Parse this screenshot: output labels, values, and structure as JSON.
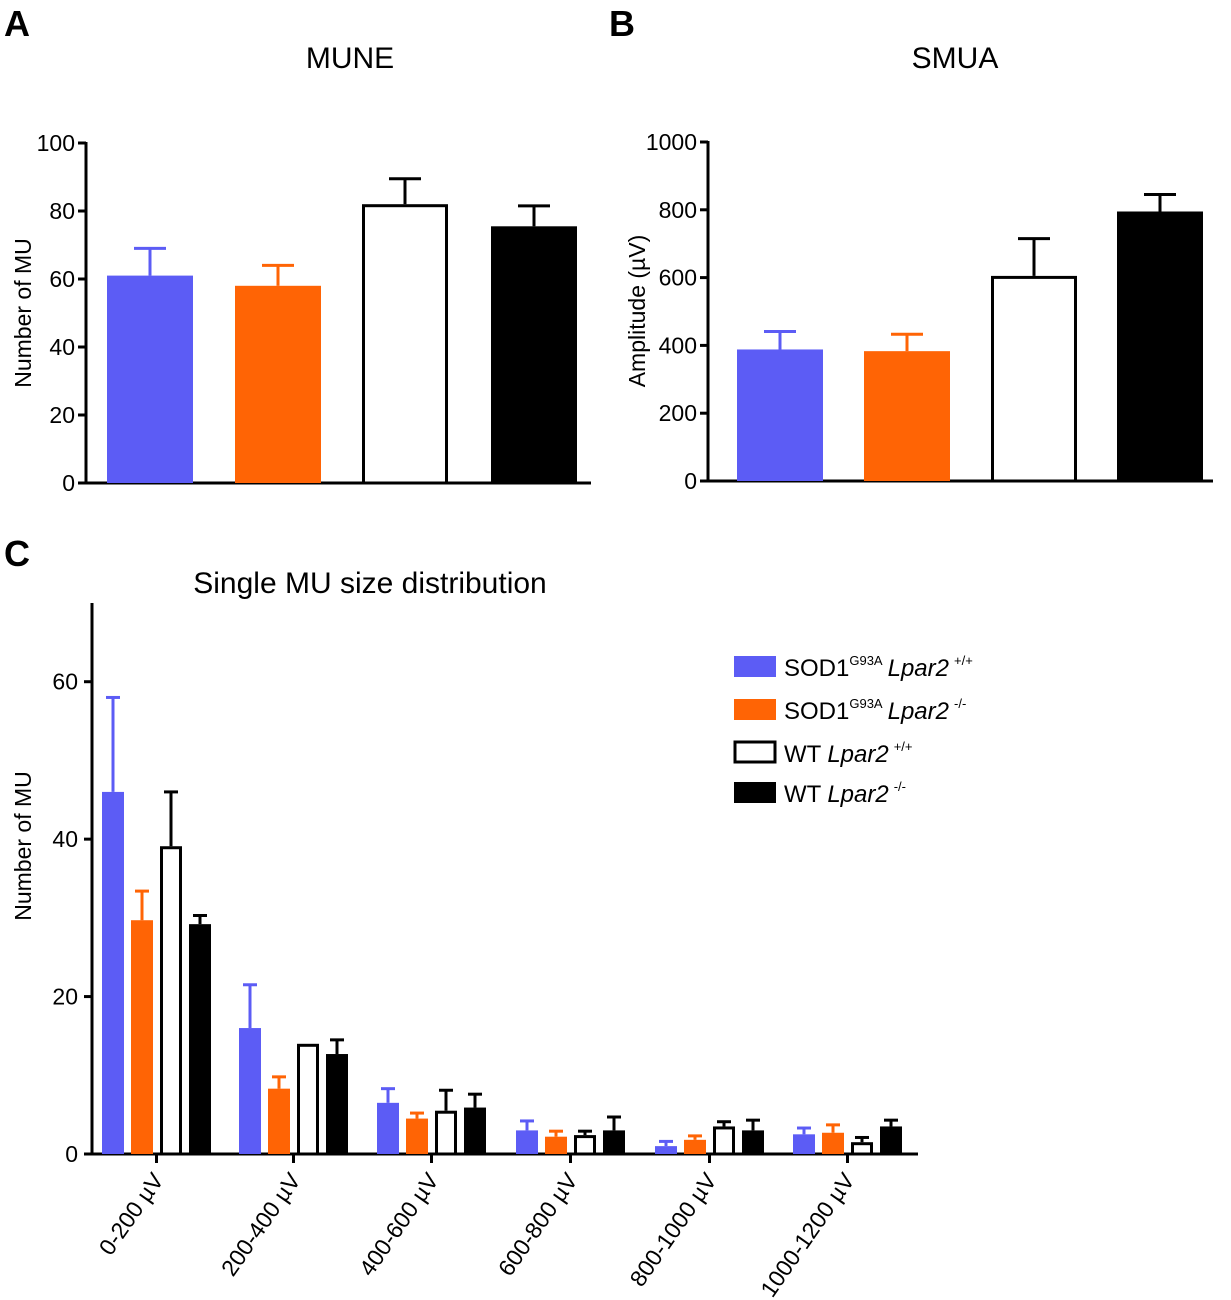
{
  "series_colors": {
    "sod1_lpar2_wt": "#5c5cf5",
    "sod1_lpar2_ko": "#ff6405",
    "wt_lpar2_wt": "#ffffff",
    "wt_lpar2_ko": "#000000"
  },
  "legend": [
    {
      "pre": "SOD1",
      "sup1": "G93A",
      "gene": "Lpar2",
      "sup2": "+/+"
    },
    {
      "pre": "SOD1",
      "sup1": "G93A",
      "gene": "Lpar2",
      "sup2": "-/-"
    },
    {
      "pre": "WT",
      "sup1": "",
      "gene": "Lpar2",
      "sup2": "+/+"
    },
    {
      "pre": "WT",
      "sup1": "",
      "gene": "Lpar2",
      "sup2": "-/-"
    }
  ],
  "chart_data": [
    {
      "panel": "A",
      "type": "bar",
      "title": "MUNE",
      "xlabel": "",
      "ylabel": "Number of MU",
      "ylim": [
        0,
        100
      ],
      "yticks": [
        "0",
        "20",
        "40",
        "60",
        "80",
        "100"
      ],
      "bars": [
        {
          "series": "sod1_lpar2_wt",
          "value": 61,
          "error": 8
        },
        {
          "series": "sod1_lpar2_ko",
          "value": 58,
          "error": 6
        },
        {
          "series": "wt_lpar2_wt",
          "value": 82,
          "error": 7.5
        },
        {
          "series": "wt_lpar2_ko",
          "value": 75.5,
          "error": 6
        }
      ]
    },
    {
      "panel": "B",
      "type": "bar",
      "title": "SMUA",
      "xlabel": "",
      "ylabel": "Amplitude (µV)",
      "ylim": [
        0,
        1000
      ],
      "yticks": [
        "0",
        "200",
        "400",
        "600",
        "800",
        "1000"
      ],
      "bars": [
        {
          "series": "sod1_lpar2_wt",
          "value": 388,
          "error": 53
        },
        {
          "series": "sod1_lpar2_ko",
          "value": 383,
          "error": 50
        },
        {
          "series": "wt_lpar2_wt",
          "value": 605,
          "error": 110
        },
        {
          "series": "wt_lpar2_ko",
          "value": 795,
          "error": 50
        }
      ]
    },
    {
      "panel": "C",
      "type": "bar",
      "title": "Single MU size distribution",
      "xlabel": "",
      "ylabel": "Number of MU",
      "ylim": [
        0,
        70
      ],
      "yticks": [
        "0",
        "20",
        "40",
        "60"
      ],
      "categories": [
        "0-200 µV",
        "200-400 µV",
        "400-600 µV",
        "600-800 µV",
        "800-1000 µV",
        "1000-1200 µV"
      ],
      "series": [
        {
          "name": "sod1_lpar2_wt",
          "values": [
            46,
            16,
            6.5,
            3,
            1,
            2.5
          ],
          "errors": [
            12,
            5.5,
            1.8,
            1.2,
            0.6,
            0.8
          ]
        },
        {
          "name": "sod1_lpar2_ko",
          "values": [
            29.7,
            8.3,
            4.5,
            2.2,
            1.8,
            2.7
          ],
          "errors": [
            3.7,
            1.5,
            0.7,
            0.7,
            0.5,
            1.0
          ]
        },
        {
          "name": "wt_lpar2_wt",
          "values": [
            39.1,
            14,
            5.5,
            2.4,
            3.5,
            1.5
          ],
          "errors": [
            6.9,
            0,
            2.6,
            0.5,
            0.6,
            0.6
          ]
        },
        {
          "name": "wt_lpar2_ko",
          "values": [
            29.2,
            12.7,
            5.9,
            3,
            3,
            3.5
          ],
          "errors": [
            1.1,
            1.8,
            1.7,
            1.7,
            1.3,
            0.8
          ]
        }
      ]
    }
  ]
}
